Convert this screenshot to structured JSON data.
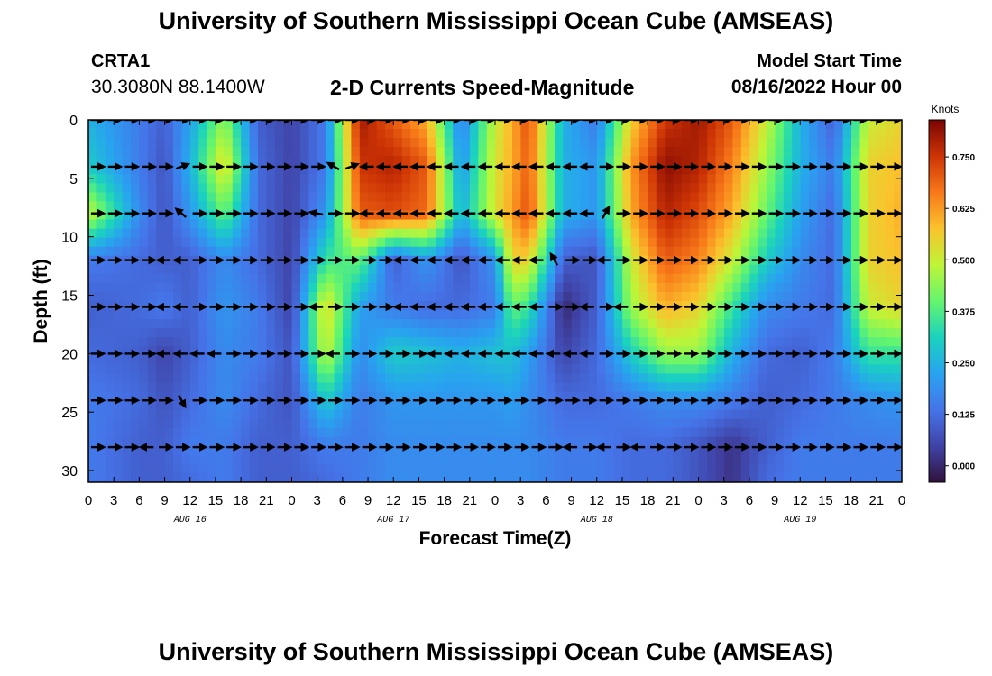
{
  "header": {
    "title": "University of Southern Mississippi Ocean Cube (AMSEAS)",
    "station_name": "CRTA1",
    "station_coords": "30.3080N  88.1400W",
    "subtitle": "2-D Currents Speed-Magnitude",
    "model_start_label": "Model Start Time",
    "model_start_value": "08/16/2022 Hour 00"
  },
  "footer": {
    "title": "University of Southern Mississippi Ocean Cube (AMSEAS)"
  },
  "chart_data": {
    "type": "heatmap",
    "title": "2-D Currents Speed-Magnitude",
    "xlabel": "Forecast Time(Z)",
    "ylabel": "Depth (ft)",
    "xlim": [
      0,
      96
    ],
    "ylim": [
      31,
      0
    ],
    "x_ticks": [
      "0",
      "3",
      "6",
      "9",
      "12",
      "15",
      "18",
      "21",
      "0",
      "3",
      "6",
      "9",
      "12",
      "15",
      "18",
      "21",
      "0",
      "3",
      "6",
      "9",
      "12",
      "15",
      "18",
      "21",
      "0",
      "3",
      "6",
      "9",
      "12",
      "15",
      "18",
      "21",
      "0"
    ],
    "y_ticks": [
      "0",
      "5",
      "10",
      "15",
      "20",
      "25",
      "30"
    ],
    "date_labels": [
      {
        "hour": 12,
        "text": "AUG 16"
      },
      {
        "hour": 36,
        "text": "AUG 17"
      },
      {
        "hour": 60,
        "text": "AUG 18"
      },
      {
        "hour": 84,
        "text": "AUG 19"
      }
    ],
    "colorbar": {
      "units": "Knots",
      "range": [
        -0.04,
        0.84
      ],
      "ticks": [
        "0.000",
        "0.125",
        "0.250",
        "0.375",
        "0.500",
        "0.625",
        "0.750"
      ],
      "tick_values": [
        0,
        0.125,
        0.25,
        0.375,
        0.5,
        0.625,
        0.75
      ]
    },
    "hours": [
      0,
      6,
      9,
      12,
      16,
      20,
      24,
      28,
      32,
      36,
      40,
      44,
      48,
      50,
      52,
      56,
      60,
      64,
      68,
      72,
      76,
      80,
      84,
      88,
      92,
      96
    ],
    "depths": [
      0,
      4,
      8,
      12,
      16,
      20,
      24,
      28,
      31
    ],
    "speed_knots": [
      [
        0.25,
        0.15,
        0.1,
        0.22,
        0.45,
        0.1,
        0.05,
        0.15,
        0.8,
        0.7,
        0.6,
        0.15,
        0.5,
        0.6,
        0.72,
        0.25,
        0.15,
        0.55,
        0.75,
        0.8,
        0.7,
        0.5,
        0.25,
        0.1,
        0.5,
        0.55
      ],
      [
        0.3,
        0.15,
        0.08,
        0.25,
        0.55,
        0.12,
        0.05,
        0.15,
        0.75,
        0.78,
        0.7,
        0.2,
        0.52,
        0.6,
        0.7,
        0.25,
        0.2,
        0.62,
        0.82,
        0.78,
        0.65,
        0.45,
        0.25,
        0.15,
        0.55,
        0.58
      ],
      [
        0.5,
        0.18,
        0.08,
        0.2,
        0.4,
        0.12,
        0.05,
        0.2,
        0.7,
        0.72,
        0.68,
        0.25,
        0.52,
        0.62,
        0.72,
        0.25,
        0.2,
        0.6,
        0.78,
        0.72,
        0.6,
        0.4,
        0.22,
        0.12,
        0.55,
        0.6
      ],
      [
        0.15,
        0.12,
        0.1,
        0.1,
        0.18,
        0.12,
        0.05,
        0.35,
        0.4,
        0.1,
        0.2,
        0.08,
        0.2,
        0.55,
        0.55,
        0.1,
        0.08,
        0.5,
        0.7,
        0.65,
        0.5,
        0.3,
        0.18,
        0.12,
        0.55,
        0.58
      ],
      [
        0.1,
        0.12,
        0.15,
        0.1,
        0.2,
        0.15,
        0.05,
        0.55,
        0.22,
        0.15,
        0.12,
        0.12,
        0.15,
        0.4,
        0.35,
        0.0,
        0.1,
        0.45,
        0.6,
        0.55,
        0.35,
        0.18,
        0.15,
        0.12,
        0.5,
        0.55
      ],
      [
        0.12,
        0.1,
        0.05,
        0.1,
        0.18,
        0.15,
        0.08,
        0.5,
        0.18,
        0.3,
        0.28,
        0.25,
        0.28,
        0.28,
        0.22,
        0.05,
        0.12,
        0.3,
        0.45,
        0.45,
        0.25,
        0.12,
        0.1,
        0.15,
        0.35,
        0.35
      ],
      [
        0.15,
        0.12,
        0.08,
        0.12,
        0.18,
        0.12,
        0.08,
        0.3,
        0.15,
        0.2,
        0.2,
        0.2,
        0.2,
        0.22,
        0.18,
        0.12,
        0.12,
        0.15,
        0.18,
        0.18,
        0.15,
        0.1,
        0.12,
        0.15,
        0.18,
        0.2
      ],
      [
        0.15,
        0.1,
        0.1,
        0.15,
        0.15,
        0.1,
        0.1,
        0.15,
        0.15,
        0.18,
        0.18,
        0.18,
        0.18,
        0.18,
        0.18,
        0.15,
        0.15,
        0.12,
        0.12,
        0.08,
        0.02,
        0.1,
        0.15,
        0.15,
        0.15,
        0.15
      ],
      [
        0.15,
        0.1,
        0.1,
        0.12,
        0.15,
        0.1,
        0.1,
        0.12,
        0.15,
        0.18,
        0.18,
        0.18,
        0.18,
        0.18,
        0.18,
        0.15,
        0.15,
        0.12,
        0.12,
        0.08,
        0.02,
        0.12,
        0.15,
        0.15,
        0.15,
        0.15
      ]
    ],
    "vector_hours": [
      1,
      3,
      5,
      7,
      9,
      11,
      13,
      15,
      17,
      19,
      21,
      23,
      25,
      27,
      29,
      31,
      33,
      35,
      37,
      39,
      41,
      43,
      45,
      47,
      49,
      51,
      53,
      55,
      57,
      59,
      61,
      63,
      65,
      67,
      69,
      71,
      73,
      75,
      77,
      79,
      81,
      83,
      85,
      87,
      89,
      91,
      93,
      95
    ],
    "vector_depths": [
      0,
      4,
      8,
      12,
      16,
      20,
      24,
      28
    ],
    "vector_direction_deg": [
      [
        0,
        0,
        0,
        0,
        0,
        0,
        0,
        0,
        0,
        0,
        0,
        0,
        0,
        0,
        0,
        0,
        0,
        0,
        0,
        0,
        0,
        0,
        0,
        0,
        0,
        0,
        0,
        0,
        0,
        0,
        0,
        0,
        0,
        0,
        0,
        0,
        0,
        0,
        0,
        0,
        0,
        0,
        0,
        0,
        0,
        0,
        0,
        0
      ],
      [
        0,
        0,
        0,
        0,
        0,
        -20,
        0,
        0,
        0,
        0,
        0,
        0,
        0,
        0,
        -150,
        -20,
        180,
        180,
        180,
        180,
        180,
        180,
        180,
        180,
        180,
        180,
        180,
        180,
        180,
        180,
        0,
        0,
        0,
        0,
        0,
        0,
        0,
        0,
        0,
        0,
        0,
        0,
        0,
        0,
        0,
        0,
        0,
        0
      ],
      [
        0,
        0,
        0,
        0,
        0,
        -140,
        0,
        0,
        0,
        0,
        0,
        0,
        0,
        -170,
        0,
        0,
        180,
        180,
        180,
        180,
        180,
        180,
        180,
        180,
        180,
        180,
        180,
        180,
        180,
        180,
        -60,
        0,
        0,
        0,
        0,
        0,
        0,
        0,
        0,
        0,
        0,
        0,
        0,
        0,
        0,
        0,
        0,
        0
      ],
      [
        0,
        0,
        0,
        0,
        180,
        180,
        0,
        0,
        0,
        0,
        0,
        0,
        0,
        0,
        0,
        0,
        0,
        0,
        180,
        180,
        180,
        180,
        180,
        180,
        180,
        180,
        180,
        -120,
        0,
        0,
        180,
        0,
        0,
        0,
        0,
        0,
        0,
        0,
        0,
        0,
        0,
        0,
        0,
        0,
        0,
        0,
        0,
        0
      ],
      [
        0,
        0,
        0,
        0,
        180,
        180,
        0,
        0,
        0,
        0,
        0,
        0,
        0,
        180,
        0,
        0,
        0,
        0,
        180,
        180,
        180,
        180,
        180,
        180,
        180,
        180,
        180,
        0,
        0,
        180,
        0,
        180,
        0,
        0,
        0,
        0,
        0,
        0,
        0,
        0,
        0,
        0,
        0,
        0,
        0,
        0,
        0,
        0
      ],
      [
        0,
        0,
        0,
        0,
        180,
        180,
        180,
        180,
        0,
        0,
        0,
        0,
        0,
        0,
        180,
        0,
        0,
        0,
        0,
        0,
        180,
        180,
        180,
        180,
        180,
        180,
        180,
        180,
        180,
        180,
        0,
        0,
        0,
        0,
        0,
        0,
        0,
        0,
        0,
        0,
        0,
        0,
        0,
        0,
        0,
        0,
        0,
        0
      ],
      [
        0,
        0,
        0,
        0,
        0,
        60,
        0,
        0,
        0,
        0,
        0,
        0,
        0,
        0,
        0,
        0,
        0,
        0,
        0,
        0,
        0,
        0,
        0,
        0,
        0,
        0,
        0,
        0,
        0,
        0,
        0,
        0,
        0,
        0,
        0,
        0,
        0,
        0,
        0,
        0,
        0,
        0,
        0,
        0,
        0,
        0,
        0,
        0
      ],
      [
        0,
        0,
        0,
        180,
        0,
        0,
        0,
        0,
        0,
        0,
        0,
        0,
        0,
        0,
        0,
        0,
        0,
        0,
        0,
        0,
        0,
        0,
        0,
        0,
        0,
        0,
        0,
        0,
        180,
        0,
        180,
        0,
        180,
        0,
        0,
        0,
        0,
        0,
        0,
        0,
        0,
        0,
        0,
        0,
        0,
        0,
        0,
        0
      ]
    ]
  }
}
